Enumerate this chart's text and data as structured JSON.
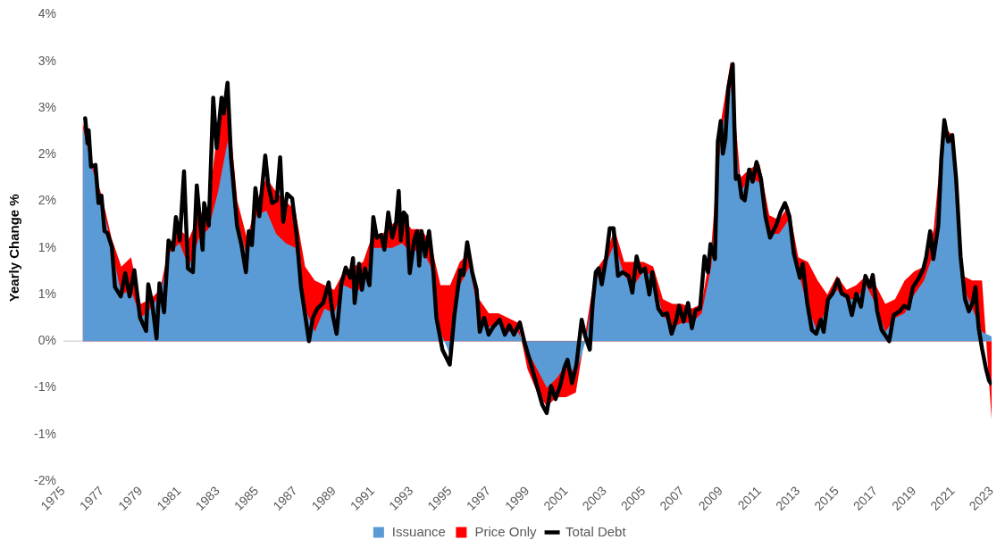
{
  "chart_data": {
    "type": "area",
    "ylabel": "Yearly Change %",
    "legend": "bottom",
    "grid": false,
    "xlim": [
      1975,
      2023
    ],
    "xticks": [
      1975,
      1977,
      1979,
      1981,
      1983,
      1985,
      1987,
      1989,
      1991,
      1993,
      1995,
      1997,
      1999,
      2001,
      2003,
      2005,
      2007,
      2009,
      2011,
      2013,
      2015,
      2017,
      2019,
      2021,
      2023
    ],
    "ylim": [
      -1.5,
      3.5
    ],
    "ref_lines": [
      {
        "axis": "y",
        "value": 0,
        "color": "#d9d9d9"
      }
    ],
    "yticks": [
      {
        "value": -1.5,
        "label": "-2%"
      },
      {
        "value": -1,
        "label": "-1%"
      },
      {
        "value": -0.5,
        "label": "-1%"
      },
      {
        "value": 0,
        "label": "0%"
      },
      {
        "value": 0.5,
        "label": "1%"
      },
      {
        "value": 1,
        "label": "1%"
      },
      {
        "value": 1.5,
        "label": "2%"
      },
      {
        "value": 2,
        "label": "2%"
      },
      {
        "value": 2.5,
        "label": "3%"
      },
      {
        "value": 3,
        "label": "3%"
      },
      {
        "value": 3.5,
        "label": "4%"
      }
    ],
    "series": [
      {
        "name": "Issuance",
        "color": "#5b9bd5",
        "x": [
          1976,
          1976.5,
          1977,
          1977.5,
          1978,
          1978.5,
          1979,
          1979.5,
          1980,
          1980.5,
          1981,
          1981.5,
          1982,
          1982.5,
          1983,
          1983.5,
          1984,
          1984.5,
          1985,
          1985.5,
          1986,
          1986.5,
          1987,
          1987.5,
          1988,
          1988.5,
          1989,
          1989.5,
          1990,
          1990.5,
          1991,
          1991.5,
          1992,
          1992.5,
          1993,
          1993.5,
          1994,
          1994.5,
          1995,
          1995.5,
          1996,
          1996.5,
          1997,
          1997.5,
          1998,
          1998.5,
          1999,
          1999.5,
          2000,
          2000.5,
          2001,
          2001.5,
          2002,
          2002.5,
          2003,
          2003.5,
          2004,
          2004.5,
          2005,
          2005.5,
          2006,
          2006.5,
          2007,
          2007.5,
          2008,
          2008.5,
          2009,
          2009.5,
          2010,
          2010.5,
          2011,
          2011.5,
          2012,
          2012.5,
          2013,
          2013.5,
          2014,
          2014.5,
          2015,
          2015.5,
          2016,
          2016.5,
          2017,
          2017.5,
          2018,
          2018.5,
          2019,
          2019.5,
          2020,
          2020.5,
          2021,
          2021.5,
          2022,
          2022.5,
          2023
        ],
        "values": [
          2.3,
          1.85,
          1.5,
          1.0,
          0.5,
          0.55,
          0.25,
          0.35,
          0.5,
          0.95,
          1.05,
          0.8,
          1.1,
          1.2,
          1.6,
          2.15,
          1.3,
          0.9,
          1.35,
          1.4,
          1.15,
          1.05,
          1.0,
          0.35,
          0.1,
          0.35,
          0.3,
          0.6,
          0.55,
          0.55,
          1.0,
          1.0,
          1.0,
          1.05,
          0.95,
          1.0,
          0.8,
          0.1,
          -0.15,
          0.6,
          0.8,
          0.25,
          0.15,
          0.2,
          0.1,
          0.1,
          -0.1,
          -0.3,
          -0.5,
          -0.4,
          -0.25,
          -0.35,
          0.0,
          0.65,
          0.8,
          1.05,
          0.7,
          0.6,
          0.75,
          0.7,
          0.28,
          0.15,
          0.2,
          0.2,
          0.3,
          0.8,
          2.2,
          2.75,
          1.6,
          1.75,
          1.7,
          1.15,
          1.15,
          1.3,
          0.75,
          0.35,
          0.1,
          0.4,
          0.55,
          0.45,
          0.45,
          0.6,
          0.4,
          0.1,
          0.25,
          0.3,
          0.5,
          0.65,
          0.95,
          2.2,
          2.1,
          0.6,
          0.35,
          0.1,
          0.05
        ]
      },
      {
        "name": "Price Only",
        "color": "#ff0000",
        "x": [
          1976,
          1976.5,
          1977,
          1977.5,
          1978,
          1978.5,
          1979,
          1979.5,
          1980,
          1980.5,
          1981,
          1981.5,
          1982,
          1982.5,
          1983,
          1983.5,
          1984,
          1984.5,
          1985,
          1985.5,
          1986,
          1986.5,
          1987,
          1987.5,
          1988,
          1988.5,
          1989,
          1989.5,
          1990,
          1990.5,
          1991,
          1991.5,
          1992,
          1992.5,
          1993,
          1993.5,
          1994,
          1994.5,
          1995,
          1995.5,
          1996,
          1996.5,
          1997,
          1997.5,
          1998,
          1998.5,
          1999,
          1999.5,
          2000,
          2000.5,
          2001,
          2001.5,
          2002,
          2002.5,
          2003,
          2003.5,
          2004,
          2004.5,
          2005,
          2005.5,
          2006,
          2006.5,
          2007,
          2007.5,
          2008,
          2008.5,
          2009,
          2009.5,
          2010,
          2010.5,
          2011,
          2011.5,
          2012,
          2012.5,
          2013,
          2013.5,
          2014,
          2014.5,
          2015,
          2015.5,
          2016,
          2016.5,
          2017,
          2017.5,
          2018,
          2018.5,
          2019,
          2019.5,
          2020,
          2020.5,
          2021,
          2021.5,
          2022,
          2022.5,
          2023
        ],
        "values": [
          2.35,
          1.9,
          1.55,
          1.1,
          0.8,
          0.9,
          0.4,
          0.45,
          0.55,
          1.05,
          1.2,
          1.1,
          1.35,
          1.45,
          2.3,
          2.6,
          1.5,
          1.1,
          1.5,
          1.75,
          1.6,
          1.5,
          1.4,
          0.8,
          0.65,
          0.6,
          0.55,
          0.75,
          0.8,
          0.85,
          1.15,
          1.15,
          1.25,
          1.35,
          1.2,
          1.2,
          1.05,
          0.6,
          0.6,
          0.85,
          0.95,
          0.45,
          0.3,
          0.3,
          0.25,
          0.2,
          -0.3,
          -0.55,
          -0.7,
          -0.6,
          -0.6,
          -0.55,
          0.1,
          0.75,
          0.9,
          1.2,
          0.85,
          0.85,
          0.85,
          0.8,
          0.45,
          0.4,
          0.4,
          0.35,
          0.4,
          1.0,
          2.35,
          3.0,
          1.75,
          1.85,
          1.9,
          1.35,
          1.3,
          1.45,
          0.9,
          0.85,
          0.65,
          0.5,
          0.7,
          0.55,
          0.6,
          0.7,
          0.6,
          0.4,
          0.45,
          0.65,
          0.75,
          0.8,
          1.2,
          2.3,
          2.2,
          0.7,
          0.65,
          0.65,
          -0.85
        ]
      },
      {
        "name": "Total Debt",
        "type": "line",
        "color": "#000000",
        "x": [
          1976.13,
          1976.25,
          1976.31,
          1976.43,
          1976.66,
          1976.82,
          1976.97,
          1977.13,
          1977.28,
          1977.51,
          1977.67,
          1977.97,
          1978.2,
          1978.43,
          1978.67,
          1978.97,
          1979.28,
          1979.39,
          1979.59,
          1979.82,
          1979.97,
          1980.21,
          1980.44,
          1980.67,
          1980.82,
          1981.02,
          1981.24,
          1981.44,
          1981.7,
          1981.9,
          1982.2,
          1982.28,
          1982.52,
          1982.75,
          1982.93,
          1983.18,
          1983.29,
          1983.49,
          1983.67,
          1983.98,
          1984.21,
          1984.44,
          1984.59,
          1984.75,
          1984.93,
          1985.13,
          1985.44,
          1985.6,
          1985.8,
          1986.03,
          1986.21,
          1986.37,
          1986.57,
          1986.83,
          1987.06,
          1987.29,
          1987.7,
          1987.9,
          1988.13,
          1988.44,
          1988.72,
          1988.93,
          1989.13,
          1989.37,
          1989.6,
          1989.83,
          1989.98,
          1990.06,
          1990.29,
          1990.44,
          1990.6,
          1990.83,
          1991.03,
          1991.21,
          1991.44,
          1991.6,
          1991.8,
          1992.01,
          1992.21,
          1992.34,
          1992.45,
          1992.6,
          1992.75,
          1992.91,
          1993.14,
          1993.29,
          1993.4,
          1993.52,
          1993.71,
          1993.91,
          1994.11,
          1994.29,
          1994.6,
          1994.98,
          1995.22,
          1995.52,
          1995.68,
          1995.88,
          1996.14,
          1996.37,
          1996.53,
          1996.76,
          1996.99,
          1997.22,
          1997.56,
          1997.83,
          1998.06,
          1998.3,
          1998.6,
          1998.83,
          1999.14,
          1999.45,
          1999.76,
          1999.99,
          2000.22,
          2000.45,
          2000.68,
          2000.91,
          2001.07,
          2001.3,
          2001.53,
          2001.8,
          2001.99,
          2002.22,
          2002.37,
          2002.53,
          2002.68,
          2002.84,
          2003.07,
          2003.25,
          2003.45,
          2003.68,
          2003.91,
          2004.22,
          2004.42,
          2004.64,
          2004.84,
          2005.07,
          2005.3,
          2005.45,
          2005.76,
          2005.99,
          2006.22,
          2006.45,
          2006.69,
          2006.84,
          2007.07,
          2007.3,
          2007.5,
          2007.69,
          2007.92,
          2008.15,
          2008.33,
          2008.46,
          2008.69,
          2008.84,
          2008.99,
          2009.1,
          2009.23,
          2009.38,
          2009.61,
          2009.77,
          2009.92,
          2010.07,
          2010.23,
          2010.46,
          2010.64,
          2010.84,
          2011.07,
          2011.3,
          2011.54,
          2011.85,
          2012.08,
          2012.31,
          2012.54,
          2012.77,
          2013.08,
          2013.23,
          2013.46,
          2013.7,
          2013.93,
          2014.16,
          2014.31,
          2014.54,
          2014.77,
          2015.05,
          2015.24,
          2015.54,
          2015.77,
          2016.0,
          2016.24,
          2016.47,
          2016.7,
          2016.85,
          2017.08,
          2017.31,
          2017.54,
          2017.7,
          2017.93,
          2018.24,
          2018.47,
          2018.7,
          2018.93,
          2019.24,
          2019.47,
          2019.62,
          2019.82,
          2019.98,
          2020.24,
          2020.39,
          2020.55,
          2020.75,
          2020.96,
          2021.16,
          2021.39,
          2021.62,
          2021.82,
          2022.01,
          2022.16,
          2022.32,
          2022.5,
          2022.7,
          2022.86,
          2022.95
        ],
        "values": [
          2.39,
          2.12,
          2.26,
          1.87,
          1.89,
          1.48,
          1.56,
          1.18,
          1.16,
          1.01,
          0.58,
          0.48,
          0.73,
          0.48,
          0.76,
          0.25,
          0.11,
          0.61,
          0.41,
          0.03,
          0.62,
          0.31,
          1.08,
          0.98,
          1.33,
          1.08,
          1.82,
          0.78,
          0.74,
          1.67,
          0.98,
          1.48,
          1.24,
          2.61,
          2.07,
          2.61,
          2.44,
          2.77,
          1.97,
          1.24,
          1.03,
          0.74,
          1.18,
          1.03,
          1.64,
          1.34,
          1.99,
          1.67,
          1.48,
          1.51,
          1.97,
          1.28,
          1.58,
          1.53,
          1.14,
          0.58,
          0.0,
          0.25,
          0.35,
          0.41,
          0.63,
          0.28,
          0.08,
          0.61,
          0.79,
          0.68,
          0.89,
          0.41,
          0.83,
          0.55,
          0.78,
          0.6,
          1.33,
          1.11,
          1.14,
          0.98,
          1.38,
          1.11,
          1.28,
          1.61,
          1.08,
          1.38,
          1.34,
          0.73,
          1.08,
          1.18,
          0.81,
          1.18,
          0.91,
          1.18,
          0.81,
          0.25,
          -0.09,
          -0.25,
          0.28,
          0.76,
          0.71,
          1.06,
          0.74,
          0.55,
          0.1,
          0.25,
          0.07,
          0.15,
          0.23,
          0.07,
          0.17,
          0.07,
          0.2,
          0.0,
          -0.22,
          -0.45,
          -0.68,
          -0.77,
          -0.48,
          -0.62,
          -0.48,
          -0.28,
          -0.2,
          -0.45,
          -0.25,
          0.23,
          0.05,
          -0.09,
          0.41,
          0.74,
          0.78,
          0.61,
          0.9,
          1.21,
          1.21,
          0.7,
          0.74,
          0.7,
          0.52,
          0.91,
          0.74,
          0.78,
          0.5,
          0.74,
          0.35,
          0.28,
          0.3,
          0.08,
          0.23,
          0.38,
          0.21,
          0.41,
          0.14,
          0.33,
          0.35,
          0.91,
          0.74,
          1.04,
          0.88,
          2.14,
          2.36,
          2.01,
          2.17,
          2.71,
          2.97,
          1.74,
          1.77,
          1.54,
          1.51,
          1.84,
          1.71,
          1.92,
          1.74,
          1.34,
          1.11,
          1.24,
          1.38,
          1.48,
          1.34,
          0.94,
          0.68,
          0.83,
          0.41,
          0.12,
          0.08,
          0.23,
          0.1,
          0.45,
          0.51,
          0.66,
          0.51,
          0.48,
          0.28,
          0.51,
          0.37,
          0.7,
          0.58,
          0.71,
          0.32,
          0.12,
          0.05,
          0.0,
          0.28,
          0.32,
          0.38,
          0.35,
          0.58,
          0.68,
          0.78,
          0.91,
          1.18,
          0.88,
          1.24,
          1.94,
          2.37,
          2.14,
          2.21,
          1.74,
          0.91,
          0.45,
          0.32,
          0.41,
          0.58,
          0.15,
          -0.08,
          -0.29,
          -0.42,
          -0.45
        ]
      }
    ]
  }
}
